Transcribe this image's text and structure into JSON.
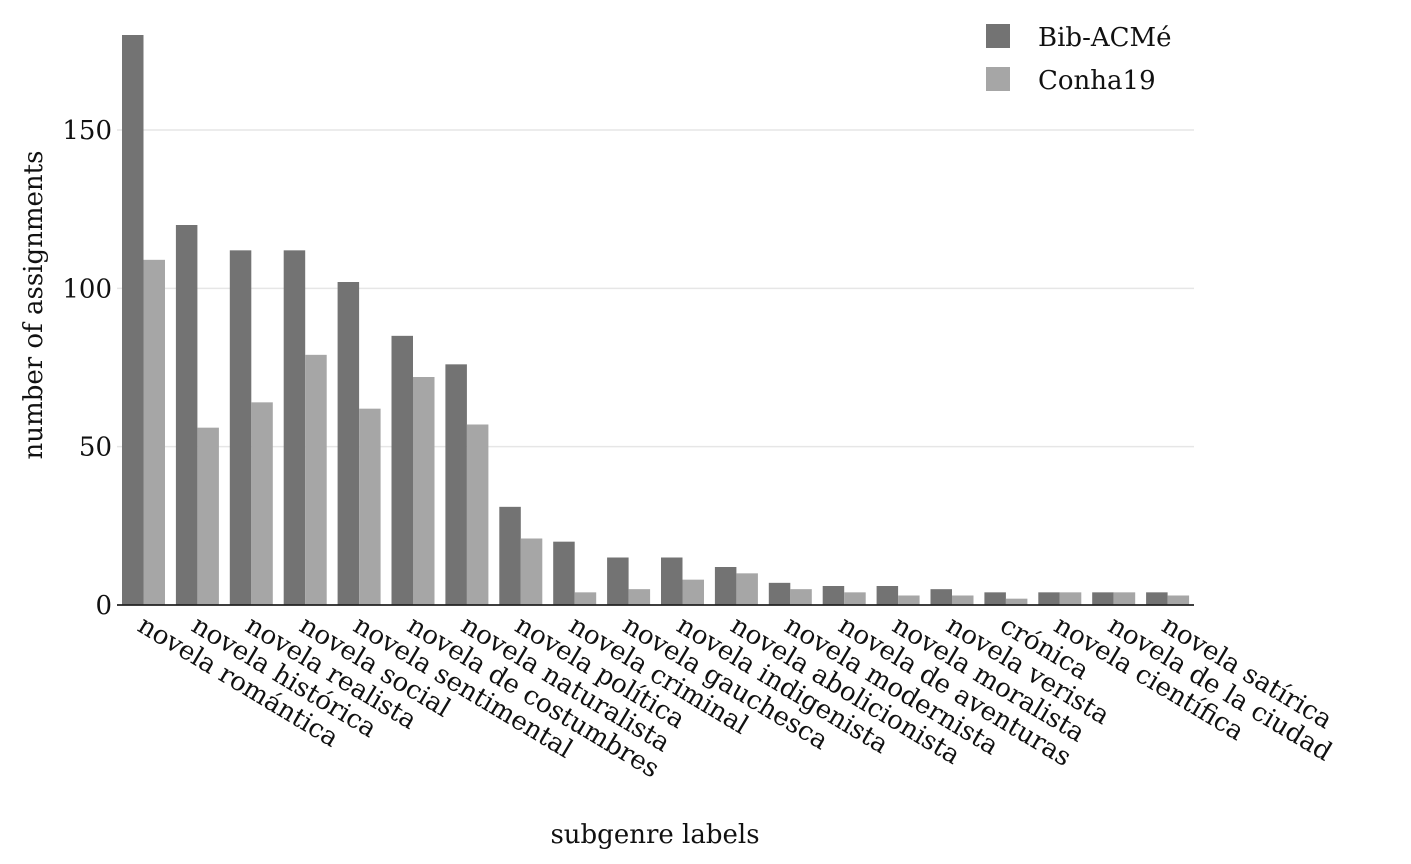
{
  "chart_data": {
    "type": "bar",
    "title": "",
    "xlabel": "subgenre labels",
    "ylabel": "number of assignments",
    "ylim": [
      0,
      180
    ],
    "yticks": [
      0,
      50,
      100,
      150
    ],
    "grid": true,
    "legend_position": "top-right",
    "categories": [
      "novela romántica",
      "novela histórica",
      "novela realista",
      "novela social",
      "novela sentimental",
      "novela de costumbres",
      "novela naturalista",
      "novela política",
      "novela criminal",
      "novela gauchesca",
      "novela indigenista",
      "novela abolicionista",
      "novela modernista",
      "novela de aventuras",
      "novela moralista",
      "novela verista",
      "crónica",
      "novela científica",
      "novela de la ciudad",
      "novela satírica"
    ],
    "series": [
      {
        "name": "Bib-ACMé",
        "color": "#737373",
        "values": [
          180,
          120,
          112,
          112,
          102,
          85,
          76,
          31,
          20,
          15,
          15,
          12,
          7,
          6,
          6,
          5,
          4,
          4,
          4,
          4
        ]
      },
      {
        "name": "Conha19",
        "color": "#a6a6a6",
        "values": [
          109,
          56,
          64,
          79,
          62,
          72,
          57,
          21,
          4,
          5,
          8,
          10,
          5,
          4,
          3,
          3,
          2,
          4,
          4,
          3
        ]
      }
    ]
  }
}
